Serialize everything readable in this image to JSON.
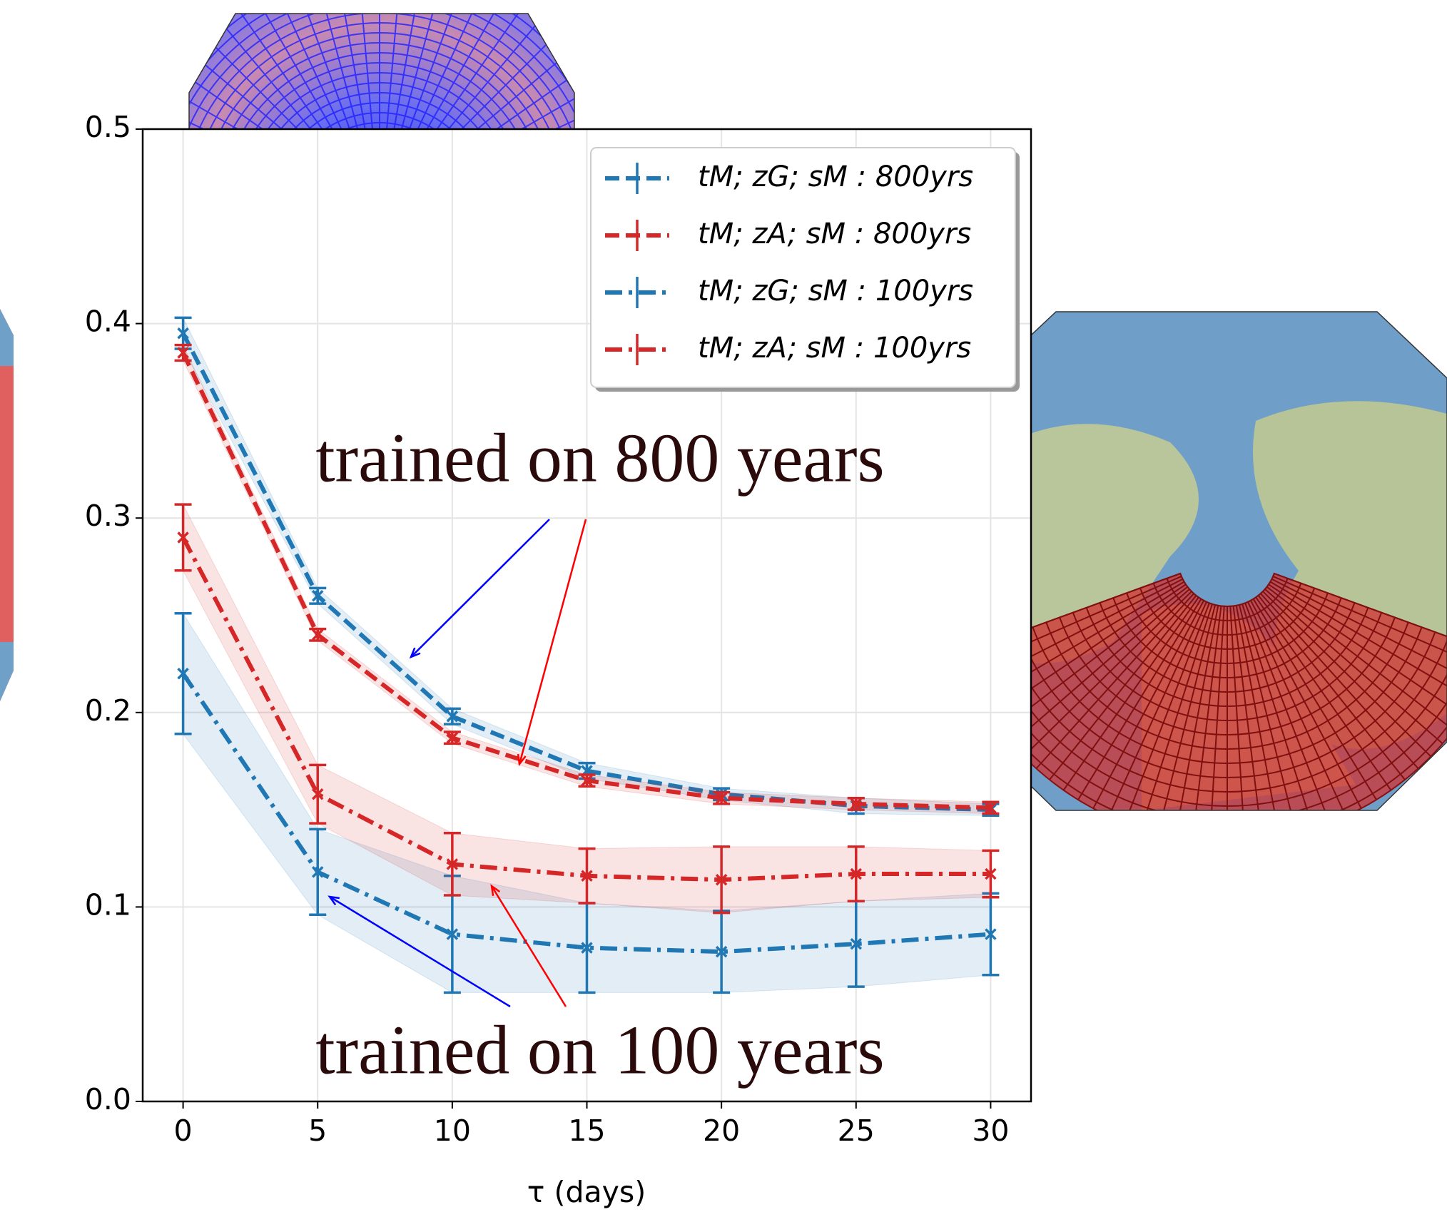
{
  "chart_data": {
    "type": "line",
    "x_label": "τ (days)",
    "x": [
      0,
      5,
      10,
      15,
      20,
      25,
      30
    ],
    "xlim": [
      -1.5,
      31.5
    ],
    "xticks": [
      0,
      5,
      10,
      15,
      20,
      25,
      30
    ],
    "ylim": [
      0,
      0.5
    ],
    "yticks": [
      {
        "value": 0,
        "label": "0.0"
      },
      0.1,
      0.2,
      0.3,
      0.4,
      0.5
    ],
    "grid": true,
    "legend": "upper right",
    "series": [
      {
        "name": "tM; zG; sM : 800yrs",
        "color": "#1f77b4",
        "linestyle": "dashed",
        "values": [
          0.395,
          0.26,
          0.198,
          0.17,
          0.158,
          0.152,
          0.15
        ],
        "errors": [
          0.008,
          0.004,
          0.004,
          0.004,
          0.003,
          0.004,
          0.003
        ]
      },
      {
        "name": "tM; zA; sM : 800yrs",
        "color": "#d62728",
        "linestyle": "dashed",
        "values": [
          0.385,
          0.24,
          0.187,
          0.165,
          0.156,
          0.153,
          0.151
        ],
        "errors": [
          0.004,
          0.003,
          0.003,
          0.003,
          0.003,
          0.003,
          0.003
        ]
      },
      {
        "name": "tM; zG; sM : 100yrs",
        "color": "#1f77b4",
        "linestyle": "dashdot",
        "values": [
          0.22,
          0.118,
          0.086,
          0.079,
          0.077,
          0.081,
          0.086
        ],
        "errors": [
          0.031,
          0.022,
          0.03,
          0.023,
          0.021,
          0.022,
          0.021
        ]
      },
      {
        "name": "tM; zA; sM : 100yrs",
        "color": "#d62728",
        "linestyle": "dashdot",
        "values": [
          0.29,
          0.158,
          0.122,
          0.116,
          0.114,
          0.117,
          0.117
        ],
        "errors": [
          0.017,
          0.015,
          0.016,
          0.014,
          0.017,
          0.014,
          0.012
        ]
      }
    ],
    "annotations": [
      "trained on 800 years",
      "trained on 100 years"
    ]
  }
}
